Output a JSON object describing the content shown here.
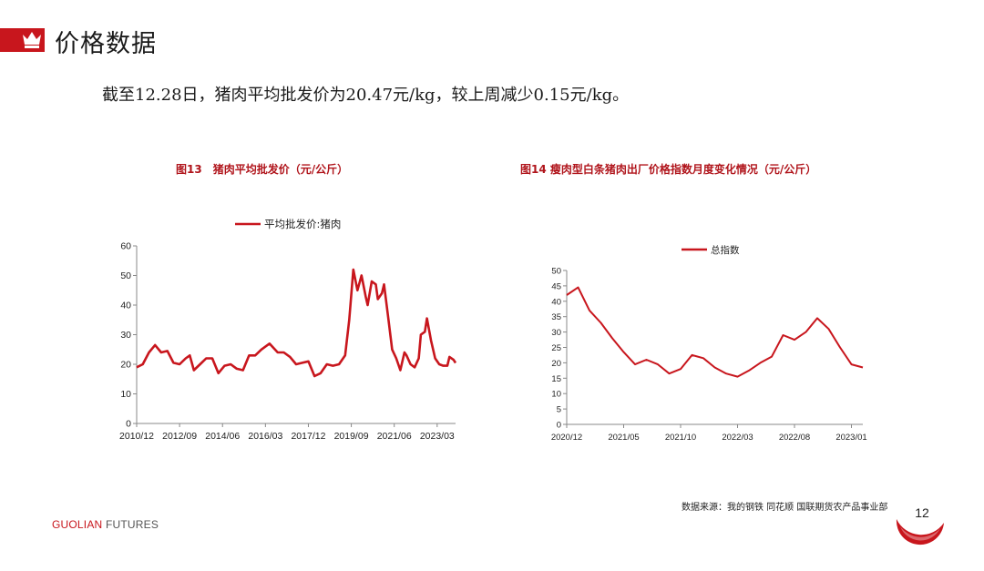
{
  "header": {
    "title": "价格数据",
    "icon": "crown-icon",
    "accent_color": "#c8161d"
  },
  "summary": "截至12.28日，猪肉平均批发价为20.47元/kg，较上周减少0.15元/kg。",
  "chart_data": [
    {
      "id": "fig13",
      "type": "line",
      "title": "图13　猪肉平均批发价（元/公斤）",
      "legend_position": "top",
      "color": "#c8161d",
      "ylim": [
        0,
        60
      ],
      "yticks": [
        0,
        10,
        20,
        30,
        40,
        50,
        60
      ],
      "xticks": [
        "2010/12",
        "2012/09",
        "2014/06",
        "2016/03",
        "2017/12",
        "2019/09",
        "2021/06",
        "2023/03"
      ],
      "grid": false,
      "series": [
        {
          "name": "平均批发价:猪肉",
          "points": [
            [
              "2010/12",
              19
            ],
            [
              "2011/03",
              20
            ],
            [
              "2011/06",
              24
            ],
            [
              "2011/09",
              26.5
            ],
            [
              "2011/12",
              24
            ],
            [
              "2012/03",
              24.5
            ],
            [
              "2012/06",
              20.5
            ],
            [
              "2012/09",
              20
            ],
            [
              "2012/12",
              22
            ],
            [
              "2013/02",
              23
            ],
            [
              "2013/04",
              18
            ],
            [
              "2013/07",
              20
            ],
            [
              "2013/10",
              22
            ],
            [
              "2014/01",
              22
            ],
            [
              "2014/04",
              17
            ],
            [
              "2014/07",
              19.5
            ],
            [
              "2014/10",
              20
            ],
            [
              "2015/01",
              18.5
            ],
            [
              "2015/04",
              18
            ],
            [
              "2015/07",
              23
            ],
            [
              "2015/10",
              23
            ],
            [
              "2016/01",
              25
            ],
            [
              "2016/05",
              27
            ],
            [
              "2016/09",
              24
            ],
            [
              "2016/12",
              24
            ],
            [
              "2017/03",
              22.5
            ],
            [
              "2017/06",
              20
            ],
            [
              "2017/09",
              20.5
            ],
            [
              "2017/12",
              21
            ],
            [
              "2018/03",
              16
            ],
            [
              "2018/06",
              17
            ],
            [
              "2018/09",
              20
            ],
            [
              "2018/12",
              19.5
            ],
            [
              "2019/03",
              20
            ],
            [
              "2019/06",
              23
            ],
            [
              "2019/08",
              35
            ],
            [
              "2019/10",
              52
            ],
            [
              "2019/12",
              45
            ],
            [
              "2020/02",
              50
            ],
            [
              "2020/04",
              43
            ],
            [
              "2020/05",
              40
            ],
            [
              "2020/07",
              48
            ],
            [
              "2020/09",
              47
            ],
            [
              "2020/10",
              42
            ],
            [
              "2020/12",
              44
            ],
            [
              "2021/01",
              47
            ],
            [
              "2021/03",
              36
            ],
            [
              "2021/05",
              25
            ],
            [
              "2021/07",
              22
            ],
            [
              "2021/09",
              18
            ],
            [
              "2021/11",
              24
            ],
            [
              "2021/12",
              23
            ],
            [
              "2022/02",
              20
            ],
            [
              "2022/04",
              19
            ],
            [
              "2022/06",
              22
            ],
            [
              "2022/07",
              30
            ],
            [
              "2022/09",
              31
            ],
            [
              "2022/10",
              35.5
            ],
            [
              "2022/12",
              28
            ],
            [
              "2023/02",
              22
            ],
            [
              "2023/04",
              20
            ],
            [
              "2023/06",
              19.5
            ],
            [
              "2023/08",
              19.5
            ],
            [
              "2023/09",
              22.5
            ],
            [
              "2023/11",
              21.5
            ],
            [
              "2023/12",
              20.47
            ]
          ]
        }
      ]
    },
    {
      "id": "fig14",
      "type": "line",
      "title": "图14  瘦肉型白条猪肉出厂价格指数月度变化情况（元/公斤）",
      "legend_position": "top",
      "color": "#c8161d",
      "ylim": [
        0,
        50
      ],
      "yticks": [
        0,
        5,
        10,
        15,
        20,
        25,
        30,
        35,
        40,
        45,
        50
      ],
      "xticks": [
        "2020/12",
        "2021/05",
        "2021/10",
        "2022/03",
        "2022/08",
        "2023/01"
      ],
      "grid": false,
      "series": [
        {
          "name": "总指数",
          "points": [
            [
              "2020/12",
              42
            ],
            [
              "2021/01",
              44.5
            ],
            [
              "2021/02",
              37
            ],
            [
              "2021/03",
              33
            ],
            [
              "2021/04",
              28
            ],
            [
              "2021/05",
              23.5
            ],
            [
              "2021/06",
              19.5
            ],
            [
              "2021/07",
              21
            ],
            [
              "2021/08",
              19.5
            ],
            [
              "2021/09",
              16.5
            ],
            [
              "2021/10",
              18
            ],
            [
              "2021/11",
              22.5
            ],
            [
              "2021/12",
              21.5
            ],
            [
              "2022/01",
              18.5
            ],
            [
              "2022/02",
              16.5
            ],
            [
              "2022/03",
              15.5
            ],
            [
              "2022/04",
              17.5
            ],
            [
              "2022/05",
              20
            ],
            [
              "2022/06",
              22
            ],
            [
              "2022/07",
              29
            ],
            [
              "2022/08",
              27.5
            ],
            [
              "2022/09",
              30
            ],
            [
              "2022/10",
              34.5
            ],
            [
              "2022/11",
              31
            ],
            [
              "2022/12",
              25
            ],
            [
              "2023/01",
              19.5
            ],
            [
              "2023/02",
              18.5
            ]
          ]
        }
      ]
    }
  ],
  "footer": {
    "source": "数据来源：我的钢铁  同花顺  国联期货农产品事业部",
    "brand_primary": "GUOLIAN",
    "brand_secondary": " FUTURES",
    "page_number": "12"
  }
}
